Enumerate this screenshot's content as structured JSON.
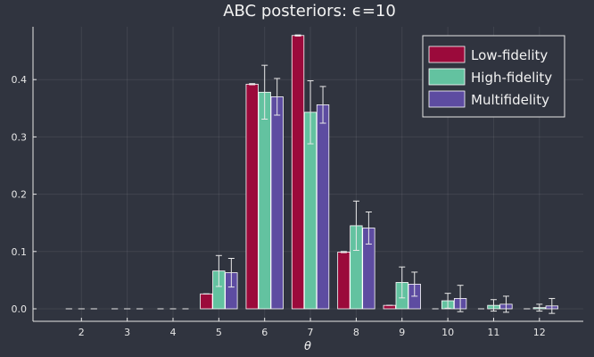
{
  "chart_data": {
    "type": "bar",
    "title": "ABC posteriors: ϵ=10",
    "xlabel": "θ",
    "ylabel": "",
    "categories": [
      "2",
      "3",
      "4",
      "5",
      "6",
      "7",
      "8",
      "9",
      "10",
      "11",
      "12"
    ],
    "yticks": [
      "0.0",
      "0.1",
      "0.2",
      "0.3",
      "0.4"
    ],
    "ylim": [
      -0.022,
      0.49
    ],
    "grid": true,
    "legend_position": "top-right",
    "series": [
      {
        "name": "Low-fidelity",
        "color": "#9b0a3b",
        "values": [
          0.0,
          0.0,
          0.0,
          0.026,
          0.392,
          0.477,
          0.099,
          0.006,
          0.0,
          0.0,
          0.0
        ],
        "err": [
          0.0,
          0.0,
          0.0,
          0.0,
          0.001,
          0.001,
          0.001,
          0.0,
          0.0,
          0.0,
          0.0
        ]
      },
      {
        "name": "High-fidelity",
        "color": "#63c2a0",
        "values": [
          0.0,
          0.0,
          0.0,
          0.066,
          0.378,
          0.343,
          0.145,
          0.046,
          0.014,
          0.006,
          0.002
        ],
        "err": [
          0.0,
          0.0,
          0.0,
          0.027,
          0.047,
          0.055,
          0.043,
          0.027,
          0.013,
          0.01,
          0.006
        ]
      },
      {
        "name": "Multifidelity",
        "color": "#5d4ca1",
        "values": [
          0.0,
          0.0,
          0.0,
          0.063,
          0.37,
          0.356,
          0.141,
          0.043,
          0.018,
          0.008,
          0.005
        ],
        "err": [
          0.0,
          0.0,
          0.0,
          0.025,
          0.032,
          0.032,
          0.028,
          0.021,
          0.023,
          0.014,
          0.013
        ]
      }
    ]
  }
}
